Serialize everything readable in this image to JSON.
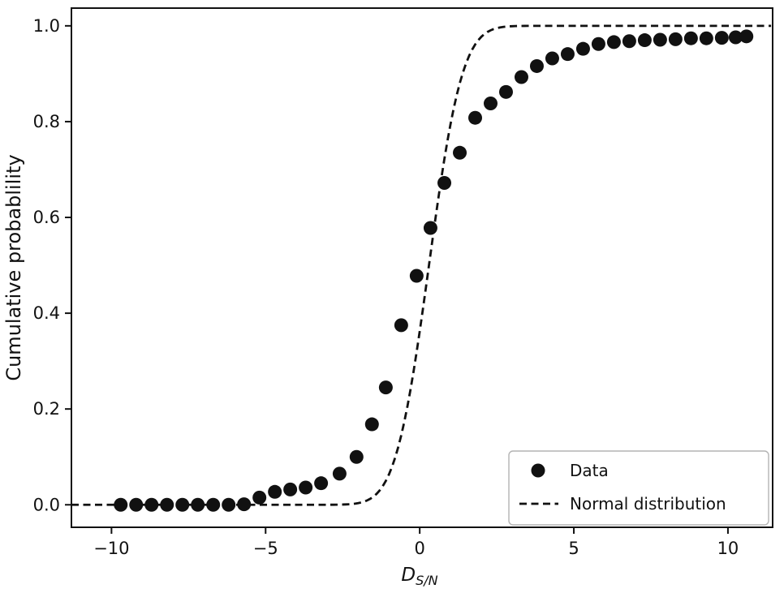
{
  "chart_data": {
    "type": "scatter",
    "title": "",
    "xlabel": "D_{S/N}",
    "xlabel_main": "D",
    "xlabel_sub": "S/N",
    "ylabel": "Cumulative probablility",
    "xlim": [
      -11.3,
      11.45
    ],
    "ylim": [
      -0.047,
      1.037
    ],
    "x_ticks": [
      -10,
      -5,
      0,
      5,
      10
    ],
    "x_tick_labels": [
      "−10",
      "−5",
      "0",
      "5",
      "10"
    ],
    "y_ticks": [
      0,
      0.2,
      0.4,
      0.6,
      0.8,
      1
    ],
    "y_tick_labels": [
      "0.0",
      "0.2",
      "0.4",
      "0.6",
      "0.8",
      "1.0"
    ],
    "grid": false,
    "ink_color": "#111111",
    "legend_border_color": "#b4b4b4",
    "series": [
      {
        "name": "Data",
        "type": "scatter",
        "marker": "filled-circle",
        "marker_radius_px": 8.5,
        "points": [
          [
            -9.7,
            0.0
          ],
          [
            -9.2,
            0.0
          ],
          [
            -8.7,
            0.0
          ],
          [
            -8.2,
            0.0
          ],
          [
            -7.7,
            0.0
          ],
          [
            -7.2,
            0.0
          ],
          [
            -6.7,
            0.0
          ],
          [
            -6.2,
            0.0
          ],
          [
            -5.7,
            0.001
          ],
          [
            -5.2,
            0.015
          ],
          [
            -4.7,
            0.027
          ],
          [
            -4.2,
            0.032
          ],
          [
            -3.7,
            0.036
          ],
          [
            -3.2,
            0.045
          ],
          [
            -2.6,
            0.065
          ],
          [
            -2.05,
            0.1
          ],
          [
            -1.55,
            0.168
          ],
          [
            -1.1,
            0.245
          ],
          [
            -0.6,
            0.375
          ],
          [
            -0.1,
            0.478
          ],
          [
            0.35,
            0.578
          ],
          [
            0.8,
            0.672
          ],
          [
            1.3,
            0.735
          ],
          [
            1.8,
            0.808
          ],
          [
            2.3,
            0.838
          ],
          [
            2.8,
            0.862
          ],
          [
            3.3,
            0.893
          ],
          [
            3.8,
            0.916
          ],
          [
            4.3,
            0.932
          ],
          [
            4.8,
            0.941
          ],
          [
            5.3,
            0.952
          ],
          [
            5.8,
            0.962
          ],
          [
            6.3,
            0.966
          ],
          [
            6.8,
            0.968
          ],
          [
            7.3,
            0.97
          ],
          [
            7.8,
            0.971
          ],
          [
            8.3,
            0.972
          ],
          [
            8.8,
            0.974
          ],
          [
            9.3,
            0.974
          ],
          [
            9.8,
            0.975
          ],
          [
            10.25,
            0.976
          ],
          [
            10.6,
            0.978
          ]
        ]
      },
      {
        "name": "Normal distribution",
        "type": "line",
        "line_style": "dashed",
        "model": {
          "kind": "normal_cdf",
          "mu": 0.3,
          "sigma": 0.85
        }
      }
    ],
    "legend": {
      "position": "lower right",
      "entries": [
        {
          "label": "Data",
          "marker": "filled-circle"
        },
        {
          "label": "Normal distribution",
          "marker": "dashed-line"
        }
      ]
    }
  }
}
